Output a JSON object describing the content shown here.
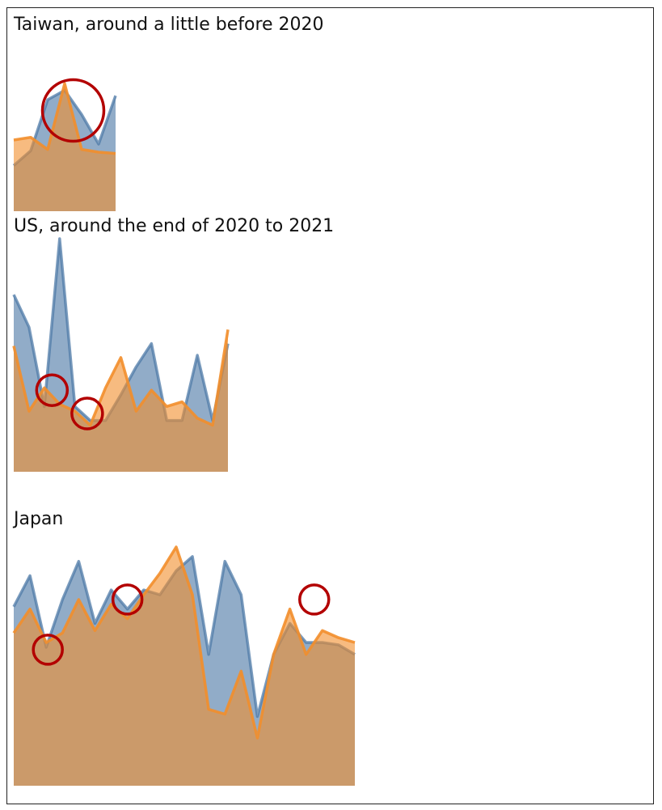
{
  "colors": {
    "series_a": "#4e79a7",
    "series_b": "#f28e2b",
    "overlap": "#cf9a66",
    "marker": "#b30000"
  },
  "chart_data": [
    {
      "type": "area",
      "title": "Taiwan, around a little before 2020",
      "x": [
        0,
        1,
        2,
        3,
        4,
        5,
        6
      ],
      "series": [
        {
          "values": [
            34,
            45,
            83,
            90,
            72,
            50,
            86
          ]
        },
        {
          "values": [
            53,
            55,
            46,
            95,
            46,
            44,
            43
          ]
        }
      ],
      "ylim": [
        0,
        100
      ],
      "markers": [
        {
          "x": 3.5,
          "y": 75
        }
      ]
    },
    {
      "type": "area",
      "title": "US, around the end of 2020 to 2021",
      "x": [
        0,
        1,
        2,
        3,
        4,
        5,
        6,
        7,
        8,
        9,
        10,
        11,
        12,
        13,
        14
      ],
      "series": [
        {
          "values": [
            76,
            62,
            28,
            100,
            28,
            22,
            22,
            33,
            45,
            55,
            22,
            22,
            50,
            22,
            55
          ]
        },
        {
          "values": [
            54,
            26,
            36,
            29,
            26,
            20,
            36,
            49,
            26,
            35,
            28,
            30,
            23,
            20,
            61
          ]
        }
      ],
      "ylim": [
        0,
        100
      ],
      "markers": [
        {
          "x": 2.5,
          "y": 35
        },
        {
          "x": 4.8,
          "y": 25
        }
      ]
    },
    {
      "type": "area",
      "title": "Japan",
      "x": [
        0,
        1,
        2,
        3,
        4,
        5,
        6,
        7,
        8,
        9,
        10,
        11,
        12,
        13,
        14,
        15,
        16,
        17,
        18,
        19,
        20,
        21
      ],
      "series": [
        {
          "values": [
            75,
            88,
            58,
            78,
            94,
            68,
            82,
            74,
            82,
            80,
            90,
            96,
            55,
            94,
            80,
            29,
            55,
            68,
            60,
            60,
            59,
            55
          ]
        },
        {
          "values": [
            64,
            74,
            60,
            64,
            78,
            65,
            76,
            70,
            80,
            89,
            100,
            80,
            32,
            30,
            48,
            20,
            55,
            74,
            55,
            65,
            62,
            60
          ]
        }
      ],
      "ylim": [
        0,
        100
      ],
      "markers": [
        {
          "x": 2.1,
          "y": 57
        },
        {
          "x": 7.0,
          "y": 78
        },
        {
          "x": 18.5,
          "y": 78
        }
      ]
    }
  ]
}
